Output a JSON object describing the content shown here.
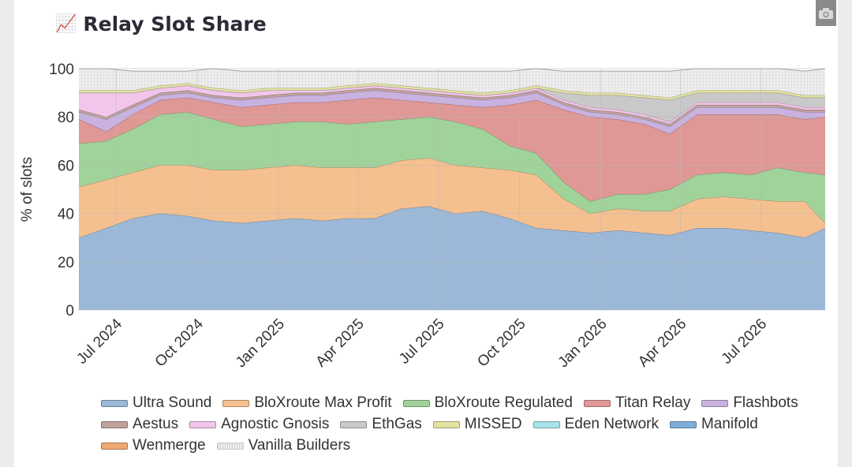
{
  "header": {
    "title": "Relay Slot Share",
    "title_icon": "chart-increasing-emoji",
    "camera_icon": "camera-icon"
  },
  "colors": {
    "Ultra Sound": "#9bb8d8",
    "BloXroute Max Profit": "#f5c08f",
    "BloXroute Regulated": "#a0d39a",
    "Titan Relay": "#e09896",
    "Flashbots": "#c9b2e0",
    "Aestus": "#bfa29c",
    "Agnostic Gnosis": "#f2c5ea",
    "EthGas": "#c9c9c9",
    "MISSED": "#e2e2a2",
    "Eden Network": "#a8e3ec",
    "Manifold": "#7faed6",
    "Wenmerge": "#f0a872",
    "Vanilla Builders": "#e4e4e4"
  },
  "chart_data": {
    "type": "area",
    "stacked": true,
    "title": "Relay Slot Share",
    "xlabel": "",
    "ylabel": "% of slots",
    "ylim": [
      0,
      100
    ],
    "yticks": [
      0,
      20,
      40,
      60,
      80,
      100
    ],
    "xlim": [
      "2024-05-20",
      "2026-09-12"
    ],
    "xticks": [
      {
        "date": "2024-07-01",
        "label": "Jul 2024"
      },
      {
        "date": "2024-10-01",
        "label": "Oct 2024"
      },
      {
        "date": "2025-01-01",
        "label": "Jan 2025"
      },
      {
        "date": "2025-04-01",
        "label": "Apr 2025"
      },
      {
        "date": "2025-07-01",
        "label": "Jul 2025"
      },
      {
        "date": "2025-10-01",
        "label": "Oct 2025"
      },
      {
        "date": "2026-01-01",
        "label": "Jan 2026"
      },
      {
        "date": "2026-04-01",
        "label": "Apr 2026"
      },
      {
        "date": "2026-07-01",
        "label": "Jul 2026"
      }
    ],
    "grid": true,
    "legend": "bottom",
    "x": [
      "2024-05-20",
      "2024-06-20",
      "2024-07-20",
      "2024-08-20",
      "2024-09-20",
      "2024-10-20",
      "2024-11-20",
      "2024-12-20",
      "2025-01-20",
      "2025-02-20",
      "2025-03-20",
      "2025-04-20",
      "2025-05-20",
      "2025-06-20",
      "2025-07-20",
      "2025-08-20",
      "2025-09-20",
      "2025-10-20",
      "2025-11-20",
      "2025-12-20",
      "2026-01-20",
      "2026-02-20",
      "2026-03-20",
      "2026-04-20",
      "2026-05-20",
      "2026-06-20",
      "2026-07-20",
      "2026-08-20",
      "2026-09-12"
    ],
    "series": [
      {
        "name": "Ultra Sound",
        "values": [
          30,
          34,
          38,
          40,
          39,
          37,
          36,
          37,
          38,
          37,
          38,
          38,
          42,
          43,
          40,
          41,
          38,
          34,
          33,
          32,
          33,
          32,
          31,
          34,
          34,
          33,
          32,
          30,
          34
        ]
      },
      {
        "name": "BloXroute Max Profit",
        "values": [
          21,
          20,
          19,
          20,
          21,
          21,
          22,
          22,
          22,
          22,
          21,
          21,
          20,
          20,
          20,
          18,
          20,
          22,
          13,
          8,
          9,
          9,
          10,
          12,
          13,
          13,
          13,
          15,
          2
        ]
      },
      {
        "name": "BloXroute Regulated",
        "values": [
          18,
          16,
          18,
          21,
          22,
          21,
          18,
          18,
          18,
          19,
          18,
          19,
          17,
          17,
          18,
          16,
          10,
          9,
          7,
          5,
          6,
          7,
          9,
          10,
          10,
          10,
          14,
          12,
          20
        ]
      },
      {
        "name": "Titan Relay",
        "values": [
          10,
          4,
          6,
          6,
          6,
          7,
          8,
          8,
          8,
          8,
          10,
          10,
          8,
          6,
          7,
          9,
          17,
          22,
          30,
          35,
          31,
          29,
          23,
          25,
          24,
          25,
          22,
          22,
          24
        ]
      },
      {
        "name": "Flashbots",
        "values": [
          3,
          5,
          3,
          2,
          2,
          2,
          3,
          3,
          3,
          3,
          3,
          3,
          3,
          3,
          3,
          3,
          3,
          3,
          2,
          2,
          2,
          2,
          3,
          3,
          3,
          3,
          3,
          3,
          2
        ]
      },
      {
        "name": "Aestus",
        "values": [
          1,
          1,
          1,
          1,
          1,
          1,
          1,
          1,
          1,
          1,
          1,
          1,
          1,
          1,
          1,
          1,
          1,
          1,
          1,
          1,
          1,
          1,
          1,
          1,
          1,
          1,
          1,
          1,
          1
        ]
      },
      {
        "name": "Agnostic Gnosis",
        "values": [
          7,
          10,
          5,
          2,
          2,
          2,
          2,
          2,
          1,
          1,
          1,
          1,
          1,
          1,
          1,
          1,
          1,
          1,
          1,
          1,
          1,
          1,
          1,
          1,
          1,
          1,
          1,
          1,
          1
        ]
      },
      {
        "name": "EthGas",
        "values": [
          0,
          0,
          0,
          0,
          0,
          0,
          0,
          0,
          0,
          0,
          0,
          0,
          0,
          0,
          0,
          0,
          0,
          0,
          3,
          5,
          6,
          7,
          9,
          4,
          4,
          4,
          4,
          4,
          4
        ]
      },
      {
        "name": "MISSED",
        "values": [
          1,
          1,
          1,
          1,
          1,
          1,
          1,
          1,
          1,
          1,
          1,
          1,
          1,
          1,
          1,
          1,
          1,
          1,
          1,
          1,
          1,
          1,
          1,
          1,
          1,
          1,
          1,
          1,
          1
        ]
      },
      {
        "name": "Eden Network",
        "values": [
          0,
          0,
          0,
          0,
          0,
          0,
          0,
          0,
          0,
          0,
          0,
          0,
          0,
          0,
          0,
          0,
          0,
          0,
          0,
          0,
          0,
          0,
          0,
          0,
          0,
          0,
          0,
          0,
          0
        ]
      },
      {
        "name": "Manifold",
        "values": [
          0,
          0,
          0,
          0,
          0,
          0,
          0,
          0,
          0,
          0,
          0,
          0,
          0,
          0,
          0,
          0,
          0,
          0,
          0,
          0,
          0,
          0,
          0,
          0,
          0,
          0,
          0,
          0,
          0
        ]
      },
      {
        "name": "Wenmerge",
        "values": [
          0,
          0,
          0,
          0,
          0,
          0,
          0,
          0,
          0,
          0,
          0,
          0,
          0,
          0,
          0,
          0,
          0,
          0,
          0,
          0,
          0,
          0,
          0,
          0,
          0,
          0,
          0,
          0,
          0
        ]
      },
      {
        "name": "Vanilla Builders",
        "values": [
          9,
          9,
          8,
          6,
          5,
          8,
          8,
          7,
          7,
          7,
          6,
          5,
          6,
          7,
          8,
          9,
          8,
          7,
          8,
          9,
          9,
          10,
          11,
          9,
          9,
          9,
          9,
          10,
          11
        ]
      }
    ]
  }
}
